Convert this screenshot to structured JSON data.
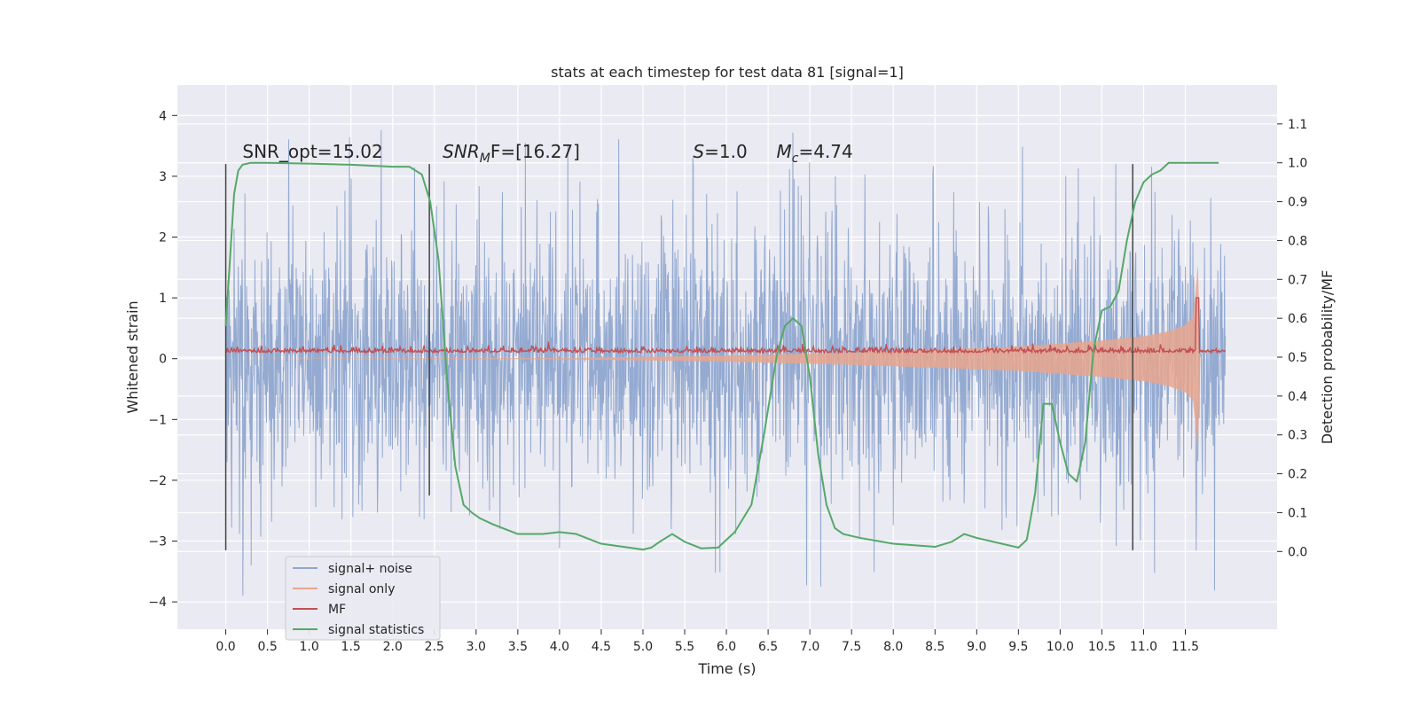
{
  "chart_data": {
    "type": "line",
    "title": "stats at each timestep for test data 81 [signal=1]",
    "xlabel": "Time (s)",
    "ylabel": "Whitened strain",
    "ylabel_right": "Detection probability/MF",
    "xlim": [
      -0.58,
      12.6
    ],
    "ylim": [
      -4.45,
      4.5
    ],
    "ylim_right": [
      -0.2,
      1.2
    ],
    "x_ticks": [
      "0.0",
      "0.5",
      "1.0",
      "1.5",
      "2.0",
      "2.5",
      "3.0",
      "3.5",
      "4.0",
      "4.5",
      "5.0",
      "5.5",
      "6.0",
      "6.5",
      "7.0",
      "7.5",
      "8.0",
      "8.5",
      "9.0",
      "9.5",
      "10.0",
      "10.5",
      "11.0",
      "11.5"
    ],
    "y_ticks": [
      "−4",
      "−3",
      "−2",
      "−1",
      "0",
      "1",
      "2",
      "3",
      "4"
    ],
    "y_right_ticks": [
      "0.0",
      "0.1",
      "0.2",
      "0.3",
      "0.4",
      "0.5",
      "0.6",
      "0.7",
      "0.8",
      "0.9",
      "1.0",
      "1.1"
    ],
    "grid": true,
    "legend_position": "lower-left",
    "annotations": [
      {
        "text": "SNR_opt=15.02",
        "x": 0.2
      },
      {
        "text_main": "SNR",
        "text_sub": "M",
        "text_rest": "F=[16.27]",
        "x": 2.6
      },
      {
        "text_main": "S",
        "text_rest": "=1.0",
        "x": 5.6
      },
      {
        "text_main": "M",
        "text_sub": "c",
        "text_rest": "=4.74",
        "x": 6.6
      }
    ],
    "annotation_y": 3.25,
    "vertical_markers": [
      {
        "x": 0.0,
        "y": [
          -3.15,
          3.2
        ]
      },
      {
        "x": 2.44,
        "y": [
          -2.25,
          3.2
        ]
      },
      {
        "x": 10.87,
        "y": [
          -3.15,
          3.2
        ]
      }
    ],
    "series": [
      {
        "name": "signal+ noise",
        "color": "#8fa6cf",
        "x_range": [
          0.0,
          11.98
        ],
        "band_core": [
          -1.95,
          1.95
        ],
        "spike_max": 4.1,
        "spike_min": -4.0
      },
      {
        "name": "signal only",
        "color": "#e8a68e",
        "envelope_x": [
          0.0,
          4.0,
          6.0,
          7.5,
          8.5,
          9.5,
          10.0,
          10.5,
          11.0,
          11.3,
          11.5,
          11.6,
          11.65,
          11.68
        ],
        "envelope_y": [
          0.0,
          0.01,
          0.05,
          0.1,
          0.15,
          0.2,
          0.25,
          0.3,
          0.37,
          0.45,
          0.55,
          0.7,
          1.6,
          0.0
        ]
      },
      {
        "name": "MF",
        "color": "#c44e52",
        "base": 0.1,
        "peak_x": 11.65,
        "peak_y": 1.0
      },
      {
        "name": "signal statistics",
        "color": "#55a868",
        "x": [
          0.0,
          0.05,
          0.1,
          0.15,
          0.2,
          0.3,
          0.5,
          1.0,
          1.5,
          2.0,
          2.2,
          2.35,
          2.45,
          2.55,
          2.65,
          2.75,
          2.85,
          2.95,
          3.05,
          3.2,
          3.5,
          3.8,
          4.0,
          4.2,
          4.5,
          5.0,
          5.1,
          5.2,
          5.35,
          5.5,
          5.7,
          5.9,
          6.1,
          6.3,
          6.45,
          6.6,
          6.7,
          6.8,
          6.9,
          7.0,
          7.1,
          7.2,
          7.3,
          7.4,
          7.6,
          8.0,
          8.5,
          8.7,
          8.85,
          9.0,
          9.3,
          9.5,
          9.6,
          9.7,
          9.8,
          9.9,
          10.0,
          10.1,
          10.2,
          10.3,
          10.4,
          10.5,
          10.6,
          10.7,
          10.8,
          10.9,
          11.0,
          11.1,
          11.2,
          11.3,
          11.5,
          11.9
        ],
        "y": [
          0.58,
          0.75,
          0.92,
          0.98,
          0.995,
          1.0,
          1.0,
          0.998,
          0.995,
          0.99,
          0.99,
          0.97,
          0.9,
          0.75,
          0.45,
          0.22,
          0.12,
          0.1,
          0.085,
          0.07,
          0.045,
          0.045,
          0.05,
          0.045,
          0.02,
          0.005,
          0.01,
          0.025,
          0.045,
          0.025,
          0.008,
          0.01,
          0.05,
          0.12,
          0.3,
          0.5,
          0.58,
          0.6,
          0.58,
          0.45,
          0.25,
          0.12,
          0.06,
          0.045,
          0.035,
          0.02,
          0.012,
          0.025,
          0.045,
          0.035,
          0.02,
          0.01,
          0.03,
          0.15,
          0.38,
          0.38,
          0.28,
          0.2,
          0.18,
          0.28,
          0.52,
          0.62,
          0.63,
          0.67,
          0.8,
          0.9,
          0.95,
          0.97,
          0.98,
          1.0,
          1.0,
          1.0
        ]
      }
    ]
  }
}
